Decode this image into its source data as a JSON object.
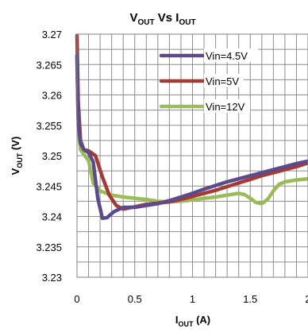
{
  "chart_data": {
    "type": "line",
    "title": {
      "main": "V",
      "sub1": "OUT",
      "vs": " Vs  I",
      "sub2": "OUT"
    },
    "ylabel": {
      "main": "V",
      "sub": "OUT",
      "unit": " (V)"
    },
    "xlabel": {
      "main": "I",
      "sub": "OUT",
      "unit": " (A)"
    },
    "xlim": [
      0,
      2
    ],
    "ylim": [
      3.23,
      3.27
    ],
    "xticks": [
      "0",
      "0.5",
      "1",
      "1.5",
      "2"
    ],
    "yticks": [
      "3.23",
      "3.235",
      "3.24",
      "3.245",
      "3.25",
      "3.255",
      "3.26",
      "3.265",
      "3.27"
    ],
    "grid": true,
    "legend_position": "top-right",
    "series": [
      {
        "name": "Vin=4.5V",
        "color": "#5b4a8c",
        "points": [
          [
            0.0,
            3.2665
          ],
          [
            0.01,
            3.256
          ],
          [
            0.03,
            3.252
          ],
          [
            0.06,
            3.251
          ],
          [
            0.1,
            3.2505
          ],
          [
            0.14,
            3.249
          ],
          [
            0.18,
            3.243
          ],
          [
            0.22,
            3.2397
          ],
          [
            0.26,
            3.2398
          ],
          [
            0.32,
            3.2408
          ],
          [
            0.4,
            3.2415
          ],
          [
            0.5,
            3.2415
          ],
          [
            0.6,
            3.2418
          ],
          [
            0.7,
            3.2421
          ],
          [
            0.8,
            3.2426
          ],
          [
            0.9,
            3.2432
          ],
          [
            1.0,
            3.2438
          ],
          [
            1.1,
            3.2445
          ],
          [
            1.2,
            3.2451
          ],
          [
            1.3,
            3.2457
          ],
          [
            1.4,
            3.2462
          ],
          [
            1.5,
            3.2467
          ],
          [
            1.6,
            3.2472
          ],
          [
            1.7,
            3.2477
          ],
          [
            1.8,
            3.2482
          ],
          [
            1.9,
            3.2487
          ],
          [
            2.0,
            3.2491
          ]
        ]
      },
      {
        "name": "Vin=5V",
        "color": "#a33a36",
        "points": [
          [
            0.0,
            3.2698
          ],
          [
            0.01,
            3.259
          ],
          [
            0.03,
            3.2525
          ],
          [
            0.06,
            3.251
          ],
          [
            0.1,
            3.2508
          ],
          [
            0.16,
            3.25
          ],
          [
            0.22,
            3.2465
          ],
          [
            0.28,
            3.2435
          ],
          [
            0.34,
            3.2418
          ],
          [
            0.4,
            3.2412
          ],
          [
            0.5,
            3.2416
          ],
          [
            0.6,
            3.242
          ],
          [
            0.7,
            3.2422
          ],
          [
            0.8,
            3.2424
          ],
          [
            0.9,
            3.2428
          ],
          [
            1.0,
            3.2433
          ],
          [
            1.1,
            3.2438
          ],
          [
            1.2,
            3.2443
          ],
          [
            1.3,
            3.2449
          ],
          [
            1.4,
            3.2455
          ],
          [
            1.5,
            3.2461
          ],
          [
            1.6,
            3.2467
          ],
          [
            1.7,
            3.2472
          ],
          [
            1.8,
            3.2477
          ],
          [
            1.9,
            3.2482
          ],
          [
            2.0,
            3.2488
          ]
        ]
      },
      {
        "name": "Vin=12V",
        "color": "#9bbb59",
        "points": [
          [
            0.0,
            3.2665
          ],
          [
            0.01,
            3.255
          ],
          [
            0.03,
            3.251
          ],
          [
            0.06,
            3.2502
          ],
          [
            0.1,
            3.2492
          ],
          [
            0.14,
            3.2455
          ],
          [
            0.2,
            3.2442
          ],
          [
            0.3,
            3.2435
          ],
          [
            0.4,
            3.2432
          ],
          [
            0.5,
            3.243
          ],
          [
            0.6,
            3.2428
          ],
          [
            0.7,
            3.2425
          ],
          [
            0.8,
            3.2424
          ],
          [
            0.9,
            3.2425
          ],
          [
            1.0,
            3.2427
          ],
          [
            1.1,
            3.243
          ],
          [
            1.2,
            3.2432
          ],
          [
            1.3,
            3.2435
          ],
          [
            1.4,
            3.2438
          ],
          [
            1.45,
            3.2436
          ],
          [
            1.5,
            3.243
          ],
          [
            1.55,
            3.2423
          ],
          [
            1.6,
            3.2421
          ],
          [
            1.65,
            3.2428
          ],
          [
            1.7,
            3.2442
          ],
          [
            1.75,
            3.2453
          ],
          [
            1.8,
            3.2457
          ],
          [
            1.9,
            3.246
          ],
          [
            2.0,
            3.2462
          ]
        ]
      }
    ]
  }
}
